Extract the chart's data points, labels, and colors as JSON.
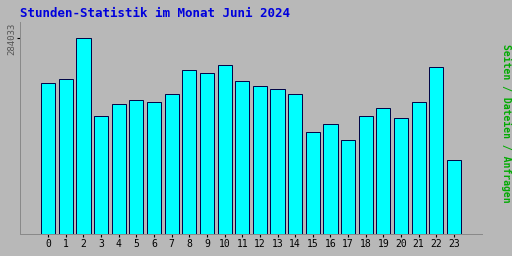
{
  "title": "Stunden-Statistik im Monat Juni 2024",
  "title_color": "#0000dd",
  "title_fontsize": 9,
  "ylabel": "Seiten / Dateien / Anfragen",
  "ylabel_color": "#00aa00",
  "ylabel_fontsize": 7,
  "xlabel_labels": [
    "0",
    "1",
    "2",
    "3",
    "4",
    "5",
    "6",
    "7",
    "8",
    "9",
    "10",
    "11",
    "12",
    "13",
    "14",
    "15",
    "16",
    "17",
    "18",
    "19",
    "20",
    "21",
    "22",
    "23"
  ],
  "bar_color": "#00ffff",
  "bar_edge_color": "#000044",
  "background_color": "#b8b8b8",
  "plot_bg_color": "#b8b8b8",
  "ytick_value": 284033,
  "ytick_label": "284033",
  "ytick_color": "#555555",
  "ymin": 260000,
  "ymax": 286000,
  "values": [
    278500,
    279000,
    284033,
    274500,
    276000,
    276500,
    276200,
    277200,
    280200,
    279800,
    280800,
    278800,
    278200,
    277800,
    277200,
    272500,
    273500,
    271500,
    274500,
    275500,
    274200,
    276200,
    280500,
    269000
  ]
}
